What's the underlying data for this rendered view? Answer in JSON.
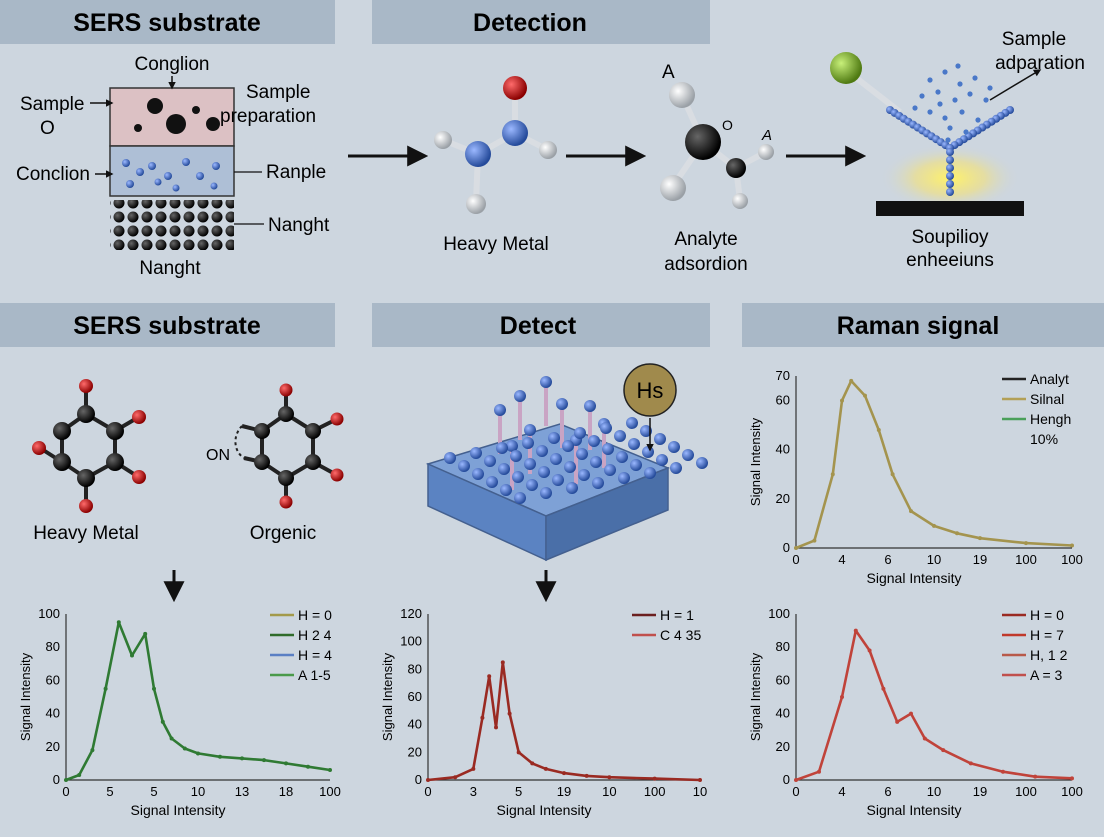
{
  "top": {
    "headers": [
      "SERS substrate",
      "Detection"
    ],
    "substrate": {
      "top_label": "Conglion",
      "sample_label": "Sample",
      "sample_sub": "O",
      "right_label_1": "Sample",
      "right_label_2": "preparation",
      "left_label_2": "Conclion",
      "right_label_3": "Ranple",
      "right_label_4": "Nanght",
      "bottom_label": "Nanght"
    },
    "molecule_1": {
      "caption": "Heavy Metal"
    },
    "molecule_2": {
      "top_letter": "A",
      "mid_letter": "O",
      "right_letter": "A",
      "caption_1": "Analyte",
      "caption_2": "adsordion"
    },
    "detector": {
      "label_1": "Sample",
      "label_2": "adparation",
      "caption_1": "Soupilioy",
      "caption_2": "enheeiuns"
    }
  },
  "bottom": {
    "headers": [
      "SERS substrate",
      "Detect",
      "Raman signal"
    ],
    "molecule_a": {
      "caption": "Heavy Metal"
    },
    "molecule_b": {
      "caption": "Orgenic",
      "side_label": "ON"
    },
    "device": {
      "badge": "Hs"
    }
  },
  "chart_data": [
    {
      "type": "line",
      "title": "",
      "xlabel": "Signal Intensity",
      "ylabel": "Signal Intensity",
      "xticks": [
        "0",
        "5",
        "5",
        "10",
        "13",
        "18",
        "100"
      ],
      "yticks": [
        "0",
        "20",
        "40",
        "60",
        "80",
        "100"
      ],
      "ylim": [
        0,
        100
      ],
      "legend": [
        "H = 0",
        "H 2 4",
        "H = 4",
        "A 1-5"
      ],
      "legend_colors": [
        "#a39a4a",
        "#2f6b2a",
        "#5a7fc4",
        "#4a9a4a"
      ],
      "series_color": "#2f7a33",
      "x_tick_index": [
        0,
        1,
        2,
        3,
        4,
        5,
        6
      ],
      "x": [
        0,
        0.3,
        0.6,
        0.9,
        1.2,
        1.5,
        1.8,
        2.0,
        2.2,
        2.4,
        2.7,
        3.0,
        3.5,
        4.0,
        4.5,
        5.0,
        5.5,
        6.0
      ],
      "values": [
        0,
        3,
        18,
        55,
        95,
        75,
        88,
        55,
        35,
        25,
        19,
        16,
        14,
        13,
        12,
        10,
        8,
        6
      ]
    },
    {
      "type": "line",
      "title": "",
      "xlabel": "Signal Intensity",
      "ylabel": "Signal Intensity",
      "xticks": [
        "0",
        "3",
        "5",
        "19",
        "10",
        "100",
        "10"
      ],
      "yticks": [
        "0",
        "20",
        "40",
        "60",
        "80",
        "100",
        "120"
      ],
      "ylim": [
        0,
        120
      ],
      "legend": [
        "H = 1",
        "C 4 35"
      ],
      "legend_colors": [
        "#6b1f1f",
        "#c0504d"
      ],
      "series_color": "#9a2a22",
      "x_tick_index": [
        0,
        1,
        2,
        3,
        4,
        5,
        6
      ],
      "x": [
        0,
        0.6,
        1.0,
        1.2,
        1.35,
        1.5,
        1.65,
        1.8,
        2.0,
        2.3,
        2.6,
        3.0,
        3.5,
        4.0,
        5.0,
        6.0
      ],
      "values": [
        0,
        2,
        8,
        45,
        75,
        38,
        85,
        48,
        20,
        12,
        8,
        5,
        3,
        2,
        1,
        0
      ]
    },
    {
      "type": "line",
      "title": "",
      "xlabel": "Signal Intensity",
      "ylabel": "Signal Intensity",
      "xticks": [
        "0",
        "4",
        "6",
        "10",
        "19",
        "100",
        "100"
      ],
      "yticks": [
        "0",
        "20",
        "40",
        "60",
        "70"
      ],
      "ylim": [
        0,
        70
      ],
      "legend": [
        "Analyt",
        "Silnal",
        "Hengh",
        "10%"
      ],
      "legend_colors": [
        "#222222",
        "#b3a056",
        "#4aa05a",
        ""
      ],
      "series_color": "#a4944e",
      "x_tick_index": [
        0,
        1,
        2,
        3,
        4,
        5,
        6
      ],
      "x": [
        0,
        0.4,
        0.8,
        1.0,
        1.2,
        1.5,
        1.8,
        2.1,
        2.5,
        3.0,
        3.5,
        4.0,
        5.0,
        6.0
      ],
      "values": [
        0,
        3,
        30,
        60,
        68,
        62,
        48,
        30,
        15,
        9,
        6,
        4,
        2,
        1
      ]
    },
    {
      "type": "line",
      "title": "",
      "xlabel": "Signal Intensity",
      "ylabel": "Signal Intensity",
      "xticks": [
        "0",
        "4",
        "6",
        "10",
        "19",
        "100",
        "100"
      ],
      "yticks": [
        "0",
        "20",
        "40",
        "60",
        "80",
        "100"
      ],
      "ylim": [
        0,
        100
      ],
      "legend": [
        "H = 0",
        "H = 7",
        "H, 1 2",
        "A = 3"
      ],
      "legend_colors": [
        "#9a2a22",
        "#c0392b",
        "#b85a4a",
        "#c0504d"
      ],
      "series_color": "#c0433a",
      "x_tick_index": [
        0,
        1,
        2,
        3,
        4,
        5,
        6
      ],
      "x": [
        0,
        0.5,
        1.0,
        1.3,
        1.6,
        1.9,
        2.2,
        2.5,
        2.8,
        3.2,
        3.8,
        4.5,
        5.2,
        6.0
      ],
      "values": [
        0,
        5,
        50,
        90,
        78,
        55,
        35,
        40,
        25,
        18,
        10,
        5,
        2,
        1
      ]
    }
  ]
}
